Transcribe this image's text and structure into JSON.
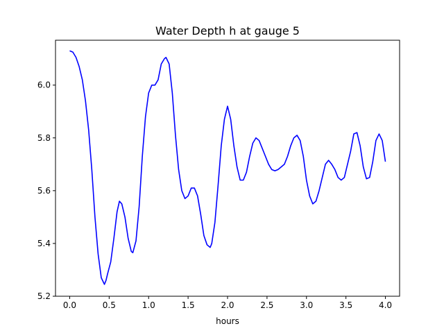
{
  "chart_data": {
    "type": "line",
    "title": "Water Depth h at gauge 5",
    "xlabel": "hours",
    "ylabel": "",
    "xlim": [
      -0.18,
      4.18
    ],
    "ylim": [
      5.2,
      6.17
    ],
    "xticks": [
      0.0,
      0.5,
      1.0,
      1.5,
      2.0,
      2.5,
      3.0,
      3.5,
      4.0
    ],
    "xtick_labels": [
      "0.0",
      "0.5",
      "1.0",
      "1.5",
      "2.0",
      "2.5",
      "3.0",
      "3.5",
      "4.0"
    ],
    "yticks": [
      5.2,
      5.4,
      5.6,
      5.8,
      6.0
    ],
    "ytick_labels": [
      "5.2",
      "5.4",
      "5.6",
      "5.8",
      "6.0"
    ],
    "grid": false,
    "legend": "none",
    "series": [
      {
        "color": "#0000ff",
        "x": [
          0.0,
          0.04,
          0.08,
          0.12,
          0.16,
          0.2,
          0.24,
          0.28,
          0.32,
          0.36,
          0.4,
          0.44,
          0.46,
          0.48,
          0.52,
          0.56,
          0.6,
          0.63,
          0.66,
          0.7,
          0.74,
          0.78,
          0.8,
          0.84,
          0.88,
          0.92,
          0.96,
          1.0,
          1.04,
          1.08,
          1.12,
          1.16,
          1.2,
          1.22,
          1.26,
          1.3,
          1.34,
          1.38,
          1.42,
          1.46,
          1.5,
          1.54,
          1.58,
          1.62,
          1.66,
          1.7,
          1.74,
          1.78,
          1.8,
          1.84,
          1.88,
          1.92,
          1.96,
          2.0,
          2.04,
          2.08,
          2.12,
          2.16,
          2.2,
          2.24,
          2.28,
          2.32,
          2.36,
          2.4,
          2.44,
          2.48,
          2.52,
          2.56,
          2.6,
          2.64,
          2.68,
          2.72,
          2.76,
          2.8,
          2.84,
          2.88,
          2.92,
          2.96,
          3.0,
          3.04,
          3.08,
          3.12,
          3.16,
          3.2,
          3.24,
          3.28,
          3.32,
          3.36,
          3.4,
          3.44,
          3.48,
          3.52,
          3.56,
          3.6,
          3.64,
          3.68,
          3.72,
          3.76,
          3.8,
          3.84,
          3.88,
          3.92,
          3.96,
          4.0
        ],
        "y": [
          6.13,
          6.125,
          6.105,
          6.07,
          6.02,
          5.94,
          5.83,
          5.68,
          5.5,
          5.36,
          5.27,
          5.245,
          5.26,
          5.285,
          5.33,
          5.42,
          5.52,
          5.56,
          5.55,
          5.5,
          5.42,
          5.37,
          5.365,
          5.41,
          5.54,
          5.73,
          5.88,
          5.97,
          6.0,
          6.0,
          6.02,
          6.08,
          6.1,
          6.105,
          6.08,
          5.97,
          5.81,
          5.68,
          5.6,
          5.57,
          5.58,
          5.61,
          5.61,
          5.58,
          5.51,
          5.43,
          5.395,
          5.385,
          5.4,
          5.48,
          5.62,
          5.77,
          5.87,
          5.92,
          5.87,
          5.77,
          5.69,
          5.64,
          5.64,
          5.67,
          5.73,
          5.78,
          5.8,
          5.79,
          5.76,
          5.73,
          5.7,
          5.68,
          5.675,
          5.68,
          5.69,
          5.7,
          5.73,
          5.77,
          5.8,
          5.81,
          5.79,
          5.73,
          5.64,
          5.58,
          5.55,
          5.56,
          5.6,
          5.65,
          5.7,
          5.715,
          5.7,
          5.68,
          5.65,
          5.64,
          5.65,
          5.7,
          5.75,
          5.815,
          5.82,
          5.77,
          5.69,
          5.645,
          5.65,
          5.71,
          5.79,
          5.815,
          5.79,
          5.71
        ]
      }
    ]
  }
}
